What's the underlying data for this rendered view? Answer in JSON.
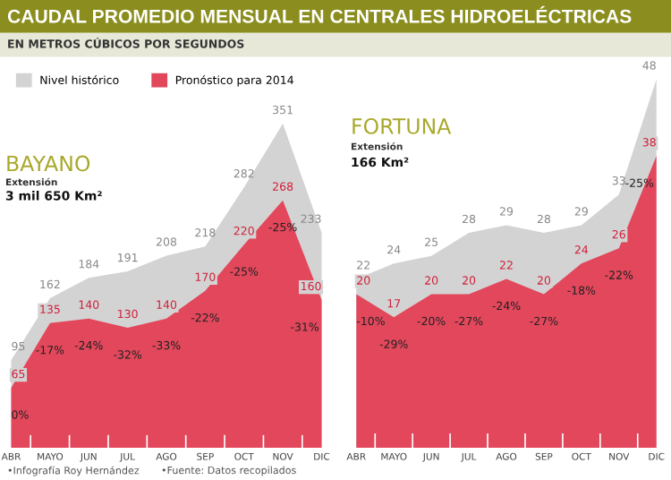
{
  "chart_data": [
    {
      "type": "other",
      "title": "CAUDAL PROMEDIO MENSUAL EN CENTRALES HIDROELÉCTRICAS",
      "subtitle": "EN METROS CÚBICOS POR SEGUNDOS",
      "annotations": [
        "•Infografía Roy Hernández",
        "•Fuente: Datos recopilados"
      ]
    },
    {
      "type": "area",
      "title": "BAYANO",
      "subtitle": "Extensión",
      "annotations": [
        "3 mil 650 Km²",
        {
          "text": "0%",
          "x": "ABR",
          "y": 65
        },
        {
          "text": "-17%",
          "x": "MAYO",
          "y": 135
        },
        {
          "text": "-24%",
          "x": "JUN",
          "y": 140
        },
        {
          "text": "-32%",
          "x": "JUL",
          "y": 130
        },
        {
          "text": "-33%",
          "x": "AGO",
          "y": 140
        },
        {
          "text": "-22%",
          "x": "SEP",
          "y": 170
        },
        {
          "text": "-25%",
          "x": "OCT",
          "y": 220
        },
        {
          "text": "-25%",
          "x": "NOV",
          "y": 268
        },
        {
          "text": "-31%",
          "x": "DIC",
          "y": 160
        }
      ],
      "categories": [
        "ABR",
        "MAYO",
        "JUN",
        "JUL",
        "AGO",
        "SEP",
        "OCT",
        "NOV",
        "DIC"
      ],
      "series": [
        {
          "name": "Nivel histórico",
          "color": "#d3d3d3",
          "values": [
            95,
            162,
            184,
            191,
            208,
            218,
            282,
            351,
            233
          ]
        },
        {
          "name": "Pronóstico para 2014",
          "color": "#e2475b",
          "values": [
            65,
            135,
            140,
            130,
            140,
            170,
            220,
            268,
            160
          ]
        }
      ],
      "data_labels": true,
      "legend": "top left",
      "tick_labels": "x",
      "grid": false
    },
    {
      "type": "area",
      "title": "FORTUNA",
      "subtitle": "Extensión",
      "annotations": [
        "166 Km²",
        {
          "text": "-10%",
          "x": "ABR",
          "y": 20
        },
        {
          "text": "-29%",
          "x": "MAYO",
          "y": 17
        },
        {
          "text": "-20%",
          "x": "JUN",
          "y": 20
        },
        {
          "text": "-27%",
          "x": "JUL",
          "y": 20
        },
        {
          "text": "-24%",
          "x": "AGO",
          "y": 22
        },
        {
          "text": "-27%",
          "x": "SEP",
          "y": 20
        },
        {
          "text": "-18%",
          "x": "OCT",
          "y": 24
        },
        {
          "text": "-22%",
          "x": "NOV",
          "y": 26
        },
        {
          "text": "-25%",
          "x": "DIC",
          "y": 38
        }
      ],
      "categories": [
        "ABR",
        "MAYO",
        "JUN",
        "JUL",
        "AGO",
        "SEP",
        "OCT",
        "NOV",
        "DIC"
      ],
      "series": [
        {
          "color": "#d3d3d3",
          "values": [
            22,
            24,
            25,
            28,
            29,
            28,
            29,
            33,
            48
          ]
        },
        {
          "color": "#e2475b",
          "values": [
            20,
            17,
            20,
            20,
            22,
            20,
            24,
            26,
            38
          ]
        }
      ],
      "data_labels": true,
      "tick_labels": "x",
      "grid": false
    }
  ]
}
